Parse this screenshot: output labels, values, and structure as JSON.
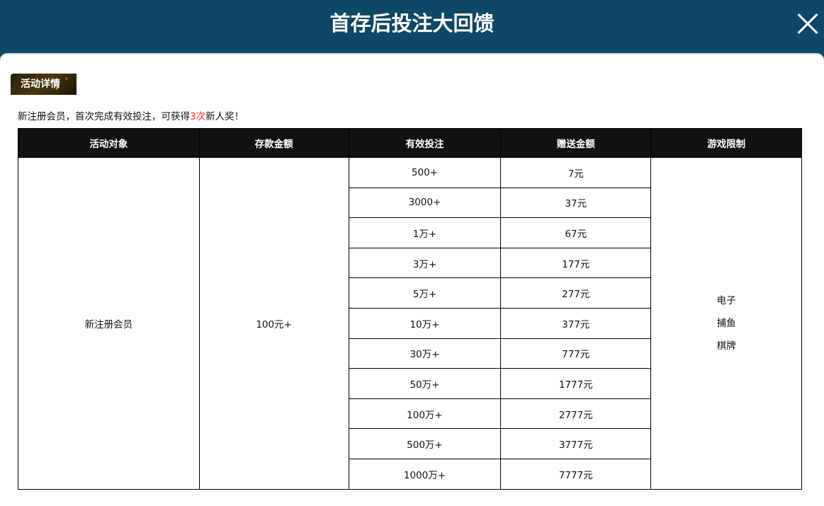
{
  "header": {
    "title": "首存后投注大回馈",
    "close_icon": "close-icon"
  },
  "badge": "活动详情",
  "intro": {
    "before": "新注册会员，首次完成有效投注，可获得",
    "highlight": "3次",
    "after": "新人奖！",
    "highlight_color": "#ff2211"
  },
  "table": {
    "columns": [
      "活动对象",
      "存款金额",
      "有效投注",
      "赠送金额",
      "游戏限制"
    ],
    "target": "新注册会员",
    "deposit": "100元+",
    "rows": [
      {
        "bet": "500+",
        "bonus": "7元"
      },
      {
        "bet": "3000+",
        "bonus": "37元"
      },
      {
        "bet": "1万+",
        "bonus": "67元"
      },
      {
        "bet": "3万+",
        "bonus": "177元"
      },
      {
        "bet": "5万+",
        "bonus": "277元"
      },
      {
        "bet": "10万+",
        "bonus": "377元"
      },
      {
        "bet": "30万+",
        "bonus": "777元"
      },
      {
        "bet": "50万+",
        "bonus": "1777元"
      },
      {
        "bet": "100万+",
        "bonus": "2777元"
      },
      {
        "bet": "500万+",
        "bonus": "3777元"
      },
      {
        "bet": "1000万+",
        "bonus": "7777元"
      }
    ],
    "games": [
      "电子",
      "捕鱼",
      "棋牌"
    ]
  }
}
